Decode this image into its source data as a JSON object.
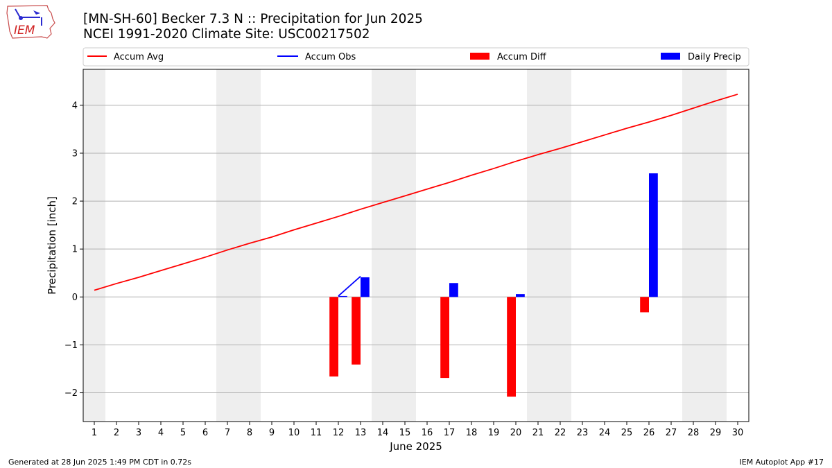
{
  "logo": {
    "text": "IEM"
  },
  "chart_data": {
    "type": "bar",
    "title": "[MN-SH-60] Becker 7.3 N :: Precipitation for Jun 2025",
    "subtitle": "NCEI 1991-2020 Climate Site: USC00217502",
    "xlabel": "June 2025",
    "ylabel": "Precipitation [inch]",
    "ylim": [
      -2.6,
      4.75
    ],
    "xlim": [
      0.5,
      30.5
    ],
    "yticks": [
      -2,
      -1,
      0,
      1,
      2,
      3,
      4
    ],
    "ytick_labels": [
      "−2",
      "−1",
      "0",
      "1",
      "2",
      "3",
      "4"
    ],
    "xticks": [
      "1",
      "2",
      "3",
      "4",
      "5",
      "6",
      "7",
      "8",
      "9",
      "10",
      "11",
      "12",
      "13",
      "14",
      "15",
      "16",
      "17",
      "18",
      "19",
      "20",
      "21",
      "22",
      "23",
      "24",
      "25",
      "26",
      "27",
      "28",
      "29",
      "30"
    ],
    "grid": "y",
    "legend_position": "top",
    "weekend_shading_days": [
      [
        0.5,
        1.5
      ],
      [
        6.5,
        8.5
      ],
      [
        13.5,
        15.5
      ],
      [
        20.5,
        22.5
      ],
      [
        27.5,
        29.5
      ]
    ],
    "colors": {
      "avg": "#ff0000",
      "obs": "#0000ff",
      "diff": "#ff0000",
      "daily": "#0000ff",
      "shade": "#eeeeee",
      "grid": "#b0b0b0"
    },
    "legend": [
      "Accum Avg",
      "Accum Obs",
      "Accum Diff",
      "Daily Precip"
    ],
    "series": [
      {
        "name": "Accum Avg",
        "kind": "line",
        "x": [
          1,
          2,
          3,
          4,
          5,
          6,
          7,
          8,
          9,
          10,
          11,
          12,
          13,
          14,
          15,
          16,
          17,
          18,
          19,
          20,
          21,
          22,
          23,
          24,
          25,
          26,
          27,
          28,
          29,
          30
        ],
        "values": [
          0.14,
          0.28,
          0.41,
          0.55,
          0.69,
          0.83,
          0.98,
          1.12,
          1.25,
          1.4,
          1.54,
          1.68,
          1.83,
          1.97,
          2.11,
          2.25,
          2.39,
          2.54,
          2.68,
          2.83,
          2.97,
          3.1,
          3.24,
          3.38,
          3.52,
          3.65,
          3.79,
          3.94,
          4.09,
          4.23
        ]
      },
      {
        "name": "Accum Obs",
        "kind": "line",
        "x": [
          12,
          13
        ],
        "values": [
          0.02,
          0.43
        ]
      },
      {
        "name": "Accum Diff",
        "kind": "bar",
        "x": [
          12,
          13,
          17,
          20,
          26
        ],
        "values": [
          -1.66,
          -1.41,
          -1.69,
          -2.08,
          -0.32
        ]
      },
      {
        "name": "Daily Precip",
        "kind": "bar",
        "x": [
          12,
          13,
          17,
          20,
          26
        ],
        "values": [
          0.02,
          0.41,
          0.29,
          0.06,
          2.58
        ]
      }
    ]
  },
  "footer": {
    "generated": "Generated at 28 Jun 2025 1:49 PM CDT in 0.72s",
    "app": "IEM Autoplot App #17"
  }
}
